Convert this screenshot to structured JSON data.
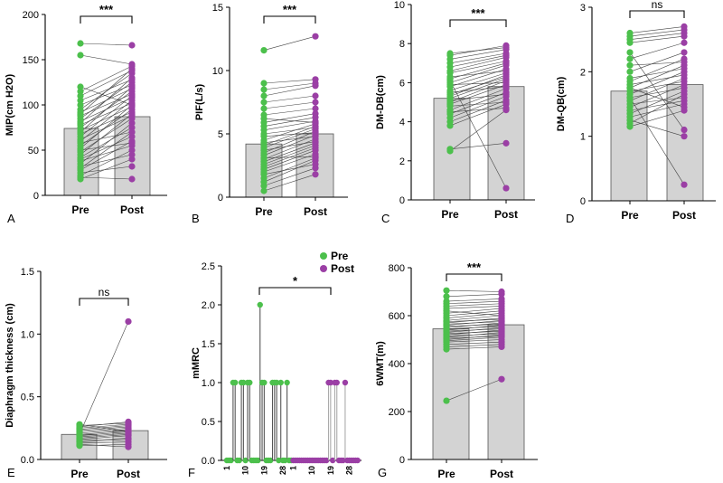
{
  "colors": {
    "pre": "#4cc04c",
    "post": "#9b3fa5",
    "bar": "#d3d3d3",
    "stemPre": "#555555",
    "stemPost": "#aaaaaa"
  },
  "chart_data": [
    {
      "id": "A",
      "type": "bar",
      "letter": "A",
      "ylabel": "MIP(cm H2O)",
      "ylim": [
        0,
        200
      ],
      "yticks": [
        0,
        50,
        100,
        150,
        200
      ],
      "categories": [
        "Pre",
        "Post"
      ],
      "values": [
        74,
        87
      ],
      "sig": "***",
      "pairs": [
        [
          18,
          40
        ],
        [
          20,
          18
        ],
        [
          22,
          50
        ],
        [
          25,
          32
        ],
        [
          28,
          60
        ],
        [
          30,
          70
        ],
        [
          32,
          45
        ],
        [
          35,
          80
        ],
        [
          38,
          55
        ],
        [
          40,
          65
        ],
        [
          42,
          75
        ],
        [
          45,
          90
        ],
        [
          48,
          85
        ],
        [
          50,
          58
        ],
        [
          52,
          100
        ],
        [
          55,
          95
        ],
        [
          58,
          70
        ],
        [
          60,
          105
        ],
        [
          62,
          88
        ],
        [
          65,
          110
        ],
        [
          68,
          92
        ],
        [
          70,
          120
        ],
        [
          72,
          98
        ],
        [
          75,
          115
        ],
        [
          78,
          102
        ],
        [
          80,
          130
        ],
        [
          82,
          108
        ],
        [
          85,
          125
        ],
        [
          88,
          112
        ],
        [
          90,
          140
        ],
        [
          92,
          118
        ],
        [
          95,
          135
        ],
        [
          100,
          122
        ],
        [
          105,
          128
        ],
        [
          110,
          138
        ],
        [
          115,
          143
        ],
        [
          120,
          100
        ],
        [
          155,
          145
        ],
        [
          168,
          166
        ]
      ]
    },
    {
      "id": "B",
      "type": "bar",
      "letter": "B",
      "ylabel": "PIF(L/s)",
      "ylim": [
        0,
        15
      ],
      "yticks": [
        0,
        5,
        10,
        15
      ],
      "categories": [
        "Pre",
        "Post"
      ],
      "values": [
        4.2,
        5.0
      ],
      "sig": "***",
      "pairs": [
        [
          0.5,
          1.8
        ],
        [
          0.9,
          2.3
        ],
        [
          1.2,
          2.9
        ],
        [
          1.5,
          3.1
        ],
        [
          1.8,
          2.6
        ],
        [
          2.0,
          3.4
        ],
        [
          2.2,
          3.7
        ],
        [
          2.4,
          3.9
        ],
        [
          2.6,
          4.1
        ],
        [
          2.8,
          4.3
        ],
        [
          3.0,
          4.6
        ],
        [
          3.1,
          3.2
        ],
        [
          3.3,
          4.9
        ],
        [
          3.5,
          5.2
        ],
        [
          3.7,
          4.4
        ],
        [
          3.9,
          5.4
        ],
        [
          4.1,
          5.6
        ],
        [
          4.3,
          4.8
        ],
        [
          4.5,
          5.8
        ],
        [
          4.8,
          5.1
        ],
        [
          5.0,
          5.5
        ],
        [
          5.3,
          6.0
        ],
        [
          5.6,
          6.3
        ],
        [
          5.9,
          6.6
        ],
        [
          6.2,
          5.9
        ],
        [
          6.5,
          7.0
        ],
        [
          7.0,
          7.5
        ],
        [
          7.5,
          8.0
        ],
        [
          8.0,
          8.8
        ],
        [
          8.5,
          9.0
        ],
        [
          9.0,
          9.3
        ],
        [
          11.6,
          12.7
        ]
      ]
    },
    {
      "id": "C",
      "type": "bar",
      "letter": "C",
      "ylabel": "DM-DB(cm)",
      "ylim": [
        0,
        10
      ],
      "yticks": [
        0,
        2,
        4,
        6,
        8,
        10
      ],
      "categories": [
        "Pre",
        "Post"
      ],
      "values": [
        5.2,
        5.8
      ],
      "sig": "***",
      "pairs": [
        [
          2.5,
          4.6
        ],
        [
          2.6,
          2.9
        ],
        [
          3.8,
          4.9
        ],
        [
          4.0,
          5.1
        ],
        [
          4.2,
          5.3
        ],
        [
          4.4,
          5.5
        ],
        [
          4.5,
          4.7
        ],
        [
          4.6,
          5.7
        ],
        [
          4.8,
          5.0
        ],
        [
          4.9,
          5.9
        ],
        [
          5.0,
          6.1
        ],
        [
          5.1,
          5.4
        ],
        [
          5.2,
          6.2
        ],
        [
          5.3,
          6.4
        ],
        [
          5.5,
          5.8
        ],
        [
          5.6,
          6.5
        ],
        [
          5.8,
          6.7
        ],
        [
          5.9,
          6.0
        ],
        [
          6.0,
          6.9
        ],
        [
          6.2,
          7.0
        ],
        [
          6.3,
          6.6
        ],
        [
          6.5,
          7.1
        ],
        [
          6.6,
          7.3
        ],
        [
          6.8,
          7.4
        ],
        [
          7.0,
          7.5
        ],
        [
          7.2,
          7.7
        ],
        [
          7.4,
          7.9
        ],
        [
          7.5,
          7.8
        ],
        [
          6.1,
          0.6
        ],
        [
          5.4,
          6.3
        ]
      ]
    },
    {
      "id": "D",
      "type": "bar",
      "letter": "D",
      "ylabel": "DM-QB(cm)",
      "ylim": [
        0,
        3
      ],
      "yticks": [
        0,
        1,
        2,
        3
      ],
      "categories": [
        "Pre",
        "Post"
      ],
      "values": [
        1.7,
        1.8
      ],
      "sig": "ns",
      "pairs": [
        [
          1.15,
          1.4
        ],
        [
          1.2,
          1.65
        ],
        [
          1.25,
          1.0
        ],
        [
          1.3,
          1.5
        ],
        [
          1.35,
          1.7
        ],
        [
          1.4,
          1.55
        ],
        [
          1.45,
          1.8
        ],
        [
          1.5,
          1.6
        ],
        [
          1.55,
          1.9
        ],
        [
          1.6,
          1.75
        ],
        [
          1.65,
          2.0
        ],
        [
          1.7,
          1.85
        ],
        [
          1.75,
          2.1
        ],
        [
          1.8,
          1.95
        ],
        [
          1.85,
          2.2
        ],
        [
          1.9,
          2.05
        ],
        [
          2.0,
          2.3
        ],
        [
          2.1,
          2.15
        ],
        [
          2.2,
          2.45
        ],
        [
          2.3,
          1.1
        ],
        [
          2.45,
          2.55
        ],
        [
          2.5,
          2.6
        ],
        [
          2.55,
          2.65
        ],
        [
          2.6,
          2.7
        ],
        [
          1.6,
          0.25
        ],
        [
          1.75,
          1.45
        ]
      ]
    },
    {
      "id": "E",
      "type": "bar",
      "letter": "E",
      "ylabel": "Diaphragm thickness (cm)",
      "ylim": [
        0,
        1.5
      ],
      "yticks": [
        0.0,
        0.5,
        1.0,
        1.5
      ],
      "categories": [
        "Pre",
        "Post"
      ],
      "values": [
        0.2,
        0.23
      ],
      "sig": "ns",
      "pairs": [
        [
          0.11,
          0.12
        ],
        [
          0.13,
          0.14
        ],
        [
          0.14,
          0.16
        ],
        [
          0.15,
          0.17
        ],
        [
          0.16,
          0.19
        ],
        [
          0.17,
          0.2
        ],
        [
          0.18,
          0.21
        ],
        [
          0.19,
          0.22
        ],
        [
          0.2,
          0.23
        ],
        [
          0.21,
          0.24
        ],
        [
          0.22,
          0.25
        ],
        [
          0.23,
          0.26
        ],
        [
          0.24,
          0.27
        ],
        [
          0.25,
          0.28
        ],
        [
          0.26,
          0.3
        ],
        [
          0.27,
          0.29
        ],
        [
          0.28,
          0.22
        ],
        [
          0.12,
          0.1
        ],
        [
          0.2,
          1.1
        ]
      ]
    },
    {
      "id": "F",
      "type": "lollipop",
      "letter": "F",
      "ylabel": "mMRC",
      "ylim": [
        0,
        2.5
      ],
      "yticks": [
        0.0,
        0.5,
        1.0,
        1.5,
        2.0,
        2.5
      ],
      "xtick_labels": [
        "1",
        "10",
        "19",
        "28",
        "1",
        "10",
        "19",
        "28"
      ],
      "legend": [
        "Pre",
        "Post"
      ],
      "sig": "*",
      "pre": [
        0,
        0,
        0,
        1,
        1,
        0,
        0,
        1,
        1,
        0,
        1,
        1,
        0,
        0,
        0,
        0,
        2,
        1,
        1,
        0,
        0,
        0,
        1,
        1,
        1,
        0,
        1,
        0,
        0,
        1,
        0,
        0
      ],
      "post": [
        0,
        0,
        0,
        0,
        0,
        0,
        0,
        0,
        0,
        0,
        0,
        0,
        0,
        0,
        0,
        0,
        0,
        1,
        1,
        0,
        1,
        1,
        0,
        0,
        0,
        1,
        0,
        0,
        0,
        0,
        0,
        0
      ]
    },
    {
      "id": "G",
      "type": "bar",
      "letter": "G",
      "ylabel": "6WMT(m)",
      "ylim": [
        0,
        800
      ],
      "yticks": [
        0,
        200,
        400,
        600,
        800
      ],
      "categories": [
        "Pre",
        "Post"
      ],
      "values": [
        545,
        562
      ],
      "sig": "***",
      "pairs": [
        [
          245,
          335
        ],
        [
          460,
          470
        ],
        [
          470,
          480
        ],
        [
          480,
          490
        ],
        [
          490,
          500
        ],
        [
          495,
          510
        ],
        [
          500,
          520
        ],
        [
          505,
          515
        ],
        [
          510,
          530
        ],
        [
          515,
          525
        ],
        [
          520,
          540
        ],
        [
          525,
          535
        ],
        [
          530,
          550
        ],
        [
          535,
          545
        ],
        [
          540,
          560
        ],
        [
          545,
          555
        ],
        [
          550,
          570
        ],
        [
          555,
          565
        ],
        [
          560,
          580
        ],
        [
          565,
          575
        ],
        [
          570,
          590
        ],
        [
          575,
          585
        ],
        [
          580,
          600
        ],
        [
          590,
          610
        ],
        [
          600,
          620
        ],
        [
          610,
          630
        ],
        [
          620,
          600
        ],
        [
          630,
          640
        ],
        [
          640,
          650
        ],
        [
          650,
          660
        ],
        [
          660,
          670
        ],
        [
          680,
          690
        ],
        [
          705,
          700
        ]
      ]
    }
  ]
}
